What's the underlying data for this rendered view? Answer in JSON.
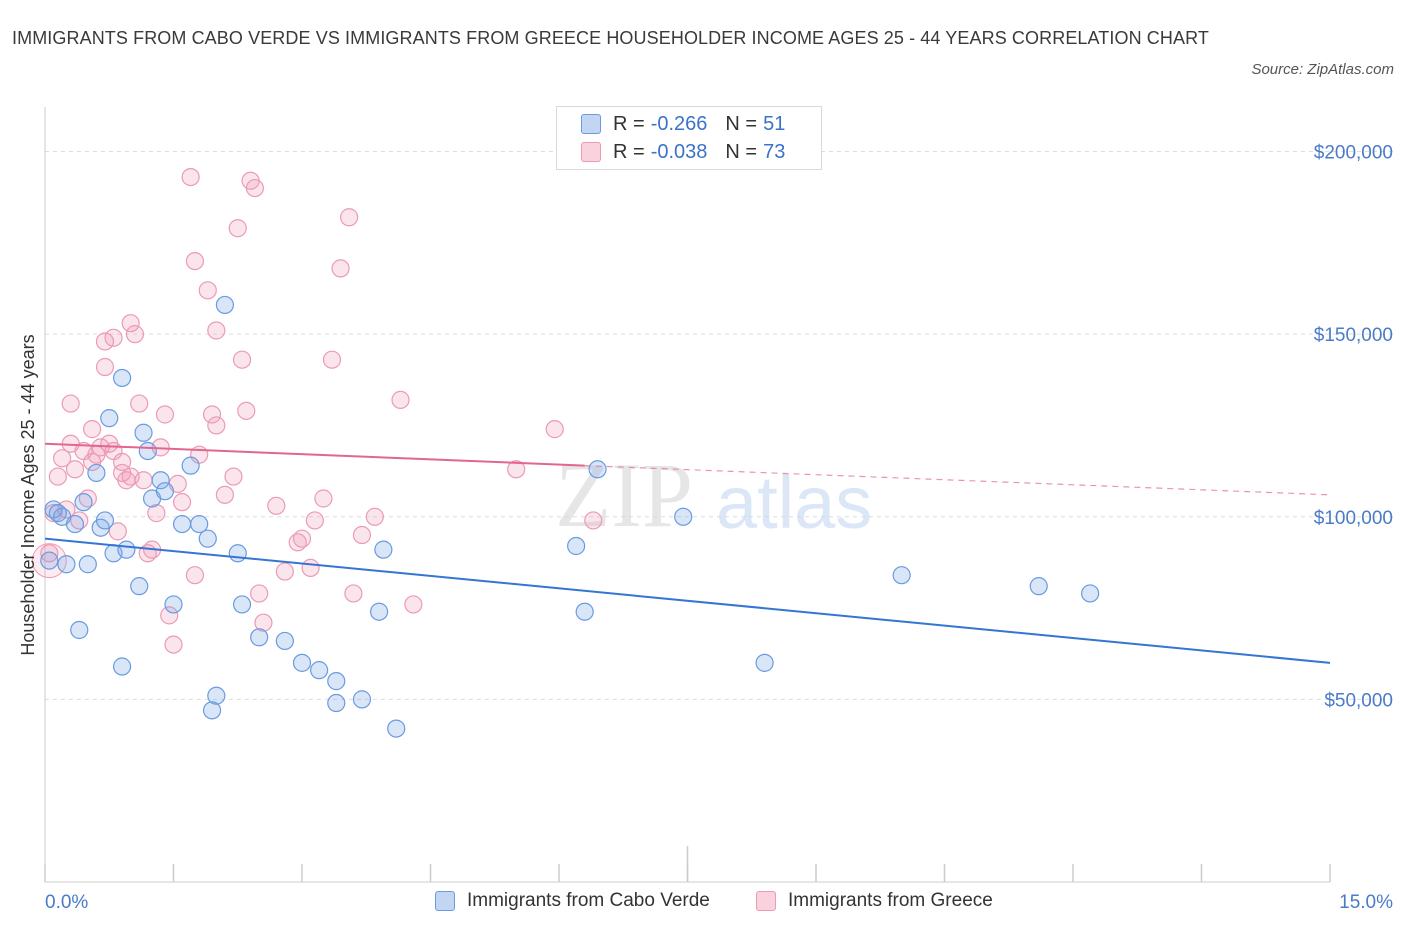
{
  "title": "IMMIGRANTS FROM CABO VERDE VS IMMIGRANTS FROM GREECE HOUSEHOLDER INCOME AGES 25 - 44 YEARS CORRELATION CHART",
  "source": "Source: ZipAtlas.com",
  "watermark": {
    "zip": "ZIP",
    "atlas": "atlas"
  },
  "legend": {
    "rows": [
      {
        "r_label": "R =",
        "r_value": "-0.266",
        "n_label": "N =",
        "n_value": "51",
        "color": "#a9c8f0"
      },
      {
        "r_label": "R =",
        "r_value": "-0.038",
        "n_label": "N =",
        "n_value": "73",
        "color": "#f5b8c9"
      }
    ]
  },
  "bottom_legend": {
    "series1": "Immigrants from Cabo Verde",
    "series2": "Immigrants from Greece"
  },
  "colors": {
    "blue_fill": "rgba(120,165,230,0.28)",
    "blue_stroke": "#6a9be0",
    "blue_line": "#3575d4",
    "pink_fill": "rgba(240,150,180,0.25)",
    "pink_stroke": "#ec9ab5",
    "pink_line": "#e2668f",
    "axis_label": "#4a7bc8"
  },
  "chart_data": {
    "type": "scatter",
    "xlabel": "",
    "ylabel": "Householder Income Ages 25 - 44 years",
    "xlim": [
      0,
      15
    ],
    "ylim": [
      0,
      210000
    ],
    "x_ticks_labels": [
      "0.0%",
      "15.0%"
    ],
    "y_ticks": [
      50000,
      100000,
      150000,
      200000
    ],
    "y_tick_labels": [
      "$50,000",
      "$100,000",
      "$150,000",
      "$200,000"
    ],
    "grid": true,
    "legend_position": "top-center",
    "series": [
      {
        "name": "Immigrants from Cabo Verde",
        "points": [
          [
            0.05,
            88000
          ],
          [
            0.1,
            102000
          ],
          [
            0.2,
            100000
          ],
          [
            0.25,
            87000
          ],
          [
            0.35,
            98000
          ],
          [
            0.4,
            69000
          ],
          [
            0.45,
            104000
          ],
          [
            0.5,
            87000
          ],
          [
            0.6,
            112000
          ],
          [
            0.65,
            97000
          ],
          [
            0.7,
            99000
          ],
          [
            0.75,
            127000
          ],
          [
            0.8,
            90000
          ],
          [
            0.9,
            138000
          ],
          [
            0.9,
            59000
          ],
          [
            0.95,
            91000
          ],
          [
            1.1,
            81000
          ],
          [
            1.15,
            123000
          ],
          [
            1.2,
            118000
          ],
          [
            1.25,
            105000
          ],
          [
            1.35,
            110000
          ],
          [
            1.4,
            107000
          ],
          [
            1.5,
            76000
          ],
          [
            1.6,
            98000
          ],
          [
            1.7,
            114000
          ],
          [
            1.8,
            98000
          ],
          [
            1.9,
            94000
          ],
          [
            1.95,
            47000
          ],
          [
            2.0,
            51000
          ],
          [
            2.1,
            158000
          ],
          [
            2.25,
            90000
          ],
          [
            2.3,
            76000
          ],
          [
            2.5,
            67000
          ],
          [
            2.8,
            66000
          ],
          [
            3.0,
            60000
          ],
          [
            3.2,
            58000
          ],
          [
            3.4,
            55000
          ],
          [
            3.4,
            49000
          ],
          [
            3.7,
            50000
          ],
          [
            3.9,
            74000
          ],
          [
            3.95,
            91000
          ],
          [
            4.1,
            42000
          ],
          [
            6.2,
            92000
          ],
          [
            6.3,
            74000
          ],
          [
            6.45,
            113000
          ],
          [
            7.45,
            100000
          ],
          [
            8.4,
            60000
          ],
          [
            10.0,
            84000
          ],
          [
            11.6,
            81000
          ],
          [
            12.2,
            79000
          ],
          [
            0.15,
            101000
          ]
        ],
        "trend": {
          "x": [
            0,
            15
          ],
          "y": [
            94000,
            60000
          ]
        }
      },
      {
        "name": "Immigrants from Greece",
        "points": [
          [
            0.05,
            90000
          ],
          [
            0.1,
            101000
          ],
          [
            0.15,
            111000
          ],
          [
            0.2,
            116000
          ],
          [
            0.25,
            102000
          ],
          [
            0.3,
            120000
          ],
          [
            0.3,
            131000
          ],
          [
            0.35,
            113000
          ],
          [
            0.4,
            99000
          ],
          [
            0.45,
            118000
          ],
          [
            0.5,
            105000
          ],
          [
            0.55,
            115000
          ],
          [
            0.55,
            124000
          ],
          [
            0.6,
            117000
          ],
          [
            0.65,
            119000
          ],
          [
            0.7,
            148000
          ],
          [
            0.7,
            141000
          ],
          [
            0.75,
            120000
          ],
          [
            0.8,
            149000
          ],
          [
            0.8,
            118000
          ],
          [
            0.85,
            96000
          ],
          [
            0.9,
            115000
          ],
          [
            0.9,
            112000
          ],
          [
            0.95,
            110000
          ],
          [
            1.0,
            153000
          ],
          [
            1.0,
            111000
          ],
          [
            1.05,
            150000
          ],
          [
            1.1,
            131000
          ],
          [
            1.15,
            110000
          ],
          [
            1.2,
            90000
          ],
          [
            1.25,
            91000
          ],
          [
            1.3,
            101000
          ],
          [
            1.35,
            119000
          ],
          [
            1.4,
            128000
          ],
          [
            1.45,
            73000
          ],
          [
            1.5,
            65000
          ],
          [
            1.55,
            109000
          ],
          [
            1.6,
            104000
          ],
          [
            1.7,
            193000
          ],
          [
            1.75,
            84000
          ],
          [
            1.75,
            170000
          ],
          [
            1.8,
            117000
          ],
          [
            1.9,
            162000
          ],
          [
            1.95,
            128000
          ],
          [
            2.0,
            151000
          ],
          [
            2.0,
            125000
          ],
          [
            2.1,
            106000
          ],
          [
            2.2,
            111000
          ],
          [
            2.25,
            179000
          ],
          [
            2.3,
            143000
          ],
          [
            2.35,
            129000
          ],
          [
            2.4,
            192000
          ],
          [
            2.45,
            190000
          ],
          [
            2.5,
            79000
          ],
          [
            2.55,
            71000
          ],
          [
            2.7,
            103000
          ],
          [
            2.8,
            85000
          ],
          [
            2.95,
            93000
          ],
          [
            3.0,
            94000
          ],
          [
            3.1,
            86000
          ],
          [
            3.15,
            99000
          ],
          [
            3.25,
            105000
          ],
          [
            3.35,
            143000
          ],
          [
            3.45,
            168000
          ],
          [
            3.55,
            182000
          ],
          [
            3.6,
            79000
          ],
          [
            3.7,
            95000
          ],
          [
            3.85,
            100000
          ],
          [
            4.15,
            132000
          ],
          [
            4.3,
            76000
          ],
          [
            5.5,
            113000
          ],
          [
            5.95,
            124000
          ],
          [
            6.4,
            99000
          ]
        ],
        "trend_solid": {
          "x": [
            0,
            6.3
          ],
          "y": [
            120000,
            114000
          ]
        },
        "trend_dashed": {
          "x": [
            6.3,
            15
          ],
          "y": [
            114000,
            106000
          ]
        }
      }
    ]
  }
}
